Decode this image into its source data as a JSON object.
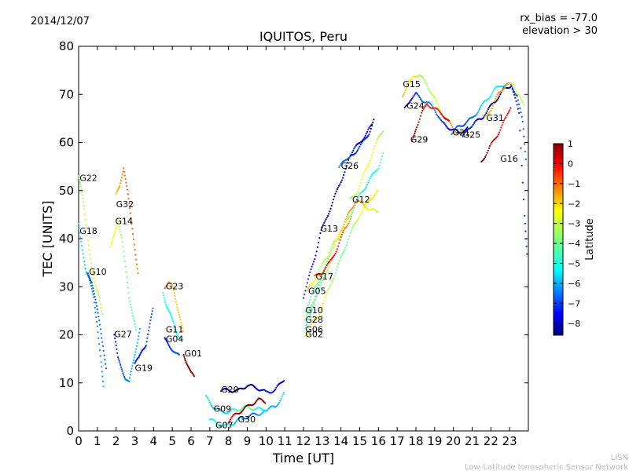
{
  "header": {
    "date": "2014/12/07",
    "bias": "rx_bias = -77.0",
    "elevation": "elevation > 30"
  },
  "watermark": {
    "line1": "LISN",
    "line2": "Low-Latitude Ionospheric Sensor Network"
  },
  "chart_data": {
    "type": "scatter",
    "title": "IQUITOS, Peru",
    "xlabel": "Time [UT]",
    "ylabel": "TEC [UNITS]",
    "xlim": [
      0,
      24
    ],
    "ylim": [
      0,
      80
    ],
    "xticks": [
      0,
      1,
      2,
      3,
      4,
      5,
      6,
      7,
      8,
      9,
      10,
      11,
      12,
      13,
      14,
      15,
      16,
      17,
      18,
      19,
      20,
      21,
      22,
      23
    ],
    "yticks": [
      0,
      10,
      20,
      30,
      40,
      50,
      60,
      70,
      80
    ],
    "colorbar": {
      "label": "Latitude",
      "range": [
        -8.6,
        1.0
      ],
      "ticks": [
        1,
        0,
        -1,
        -2,
        -3,
        -4,
        -5,
        -6,
        -7,
        -8
      ],
      "colormap": [
        "#00007f",
        "#0000ff",
        "#007fff",
        "#00ffff",
        "#7fff7f",
        "#ffff00",
        "#ff7f00",
        "#ff0000",
        "#7f0000"
      ]
    },
    "series": [
      {
        "name": "G22",
        "label_at": [
          0.05,
          52
        ],
        "lat": -3.8,
        "points": [
          [
            0.0,
            53
          ],
          [
            0.15,
            50
          ],
          [
            0.3,
            46
          ],
          [
            0.5,
            40
          ],
          [
            0.7,
            34
          ],
          [
            0.9,
            30
          ],
          [
            1.1,
            28
          ],
          [
            1.3,
            24
          ]
        ]
      },
      {
        "name": "G18",
        "label_at": [
          0.05,
          41
        ],
        "lat": -5.2,
        "points": [
          [
            0.0,
            43
          ],
          [
            0.2,
            38
          ],
          [
            0.4,
            33
          ],
          [
            0.6,
            31
          ],
          [
            0.8,
            28
          ],
          [
            1.0,
            22
          ],
          [
            1.2,
            14
          ],
          [
            1.35,
            8
          ]
        ]
      },
      {
        "name": "G10",
        "label_at": [
          0.55,
          32.5
        ],
        "lat": -7.2,
        "points": [
          [
            0.5,
            33
          ],
          [
            0.7,
            31
          ],
          [
            0.9,
            27
          ],
          [
            1.1,
            23
          ],
          [
            1.3,
            18
          ],
          [
            1.5,
            12
          ]
        ]
      },
      {
        "name": "G32",
        "label_at": [
          2.0,
          46.5
        ],
        "lat": -2.0,
        "points": [
          [
            2.0,
            49
          ],
          [
            2.2,
            51
          ],
          [
            2.4,
            55
          ],
          [
            2.6,
            50
          ],
          [
            2.8,
            44
          ],
          [
            3.0,
            38
          ],
          [
            3.2,
            32
          ]
        ]
      },
      {
        "name": "G14",
        "label_at": [
          1.95,
          43
        ],
        "lat": -3.4,
        "points": [
          [
            1.7,
            38
          ],
          [
            1.9,
            41
          ],
          [
            2.1,
            44
          ],
          [
            2.3,
            40
          ],
          [
            2.5,
            34
          ],
          [
            2.7,
            28
          ],
          [
            2.9,
            24
          ],
          [
            3.1,
            20
          ]
        ]
      },
      {
        "name": "G27",
        "label_at": [
          1.9,
          19.5
        ],
        "lat": -6.5,
        "points": [
          [
            1.9,
            20
          ],
          [
            2.1,
            15
          ],
          [
            2.3,
            13
          ],
          [
            2.5,
            11
          ],
          [
            2.7,
            10
          ],
          [
            2.9,
            14
          ],
          [
            3.1,
            18
          ],
          [
            3.3,
            22
          ]
        ]
      },
      {
        "name": "G19",
        "label_at": [
          3.0,
          12.5
        ],
        "lat": -6.2,
        "points": [
          [
            3.0,
            14
          ],
          [
            3.2,
            15
          ],
          [
            3.4,
            17
          ],
          [
            3.6,
            18
          ],
          [
            3.8,
            22
          ],
          [
            4.0,
            26
          ]
        ]
      },
      {
        "name": "G11",
        "label_at": [
          4.65,
          20.5
        ],
        "lat": -4.0,
        "points": [
          [
            4.5,
            29
          ],
          [
            4.7,
            26
          ],
          [
            4.9,
            24
          ],
          [
            5.1,
            22
          ],
          [
            5.3,
            20
          ],
          [
            5.5,
            19
          ]
        ]
      },
      {
        "name": "G04",
        "label_at": [
          4.65,
          18.5
        ],
        "lat": -7.5,
        "points": [
          [
            4.6,
            19
          ],
          [
            4.8,
            18
          ],
          [
            5.0,
            17
          ],
          [
            5.2,
            16
          ],
          [
            5.4,
            15.5
          ]
        ]
      },
      {
        "name": "G23",
        "label_at": [
          4.65,
          29.5
        ],
        "lat": -1.2,
        "points": [
          [
            4.6,
            30
          ],
          [
            4.8,
            31
          ],
          [
            5.0,
            30
          ],
          [
            5.2,
            27
          ],
          [
            5.4,
            24
          ],
          [
            5.6,
            20
          ]
        ]
      },
      {
        "name": "G01",
        "label_at": [
          5.65,
          15.5
        ],
        "lat": 0.2,
        "points": [
          [
            5.6,
            16
          ],
          [
            5.8,
            14
          ],
          [
            6.0,
            12
          ],
          [
            6.2,
            11
          ]
        ]
      },
      {
        "name": "G20",
        "label_at": [
          7.6,
          8.0
        ],
        "lat": -8.0,
        "points": [
          [
            7.6,
            8.5
          ],
          [
            8.0,
            8.5
          ],
          [
            8.5,
            8.3
          ],
          [
            9.0,
            9.5
          ],
          [
            9.5,
            9.0
          ],
          [
            10.0,
            8.0
          ],
          [
            10.5,
            8.5
          ],
          [
            11.0,
            11
          ]
        ]
      },
      {
        "name": "G09",
        "label_at": [
          7.2,
          4.0
        ],
        "lat": -4.8,
        "points": [
          [
            6.8,
            7
          ],
          [
            7.2,
            5
          ],
          [
            7.6,
            4
          ],
          [
            8.0,
            4
          ],
          [
            8.5,
            4.5
          ],
          [
            9.0,
            5
          ],
          [
            9.5,
            4.5
          ],
          [
            10.0,
            4.5
          ],
          [
            10.5,
            5
          ],
          [
            11.0,
            8
          ]
        ]
      },
      {
        "name": "G07",
        "label_at": [
          7.3,
          0.6
        ],
        "lat": -5.5,
        "points": [
          [
            7.0,
            2.5
          ],
          [
            7.4,
            1.5
          ],
          [
            7.8,
            1.0
          ],
          [
            8.2,
            1.5
          ],
          [
            8.6,
            2.5
          ],
          [
            9.0,
            3.0
          ],
          [
            9.5,
            3.5
          ],
          [
            10.0,
            4.0
          ]
        ]
      },
      {
        "name": "G30",
        "label_at": [
          8.5,
          1.8
        ],
        "lat": 0.5,
        "points": [
          [
            8.0,
            2
          ],
          [
            8.4,
            3.5
          ],
          [
            8.8,
            4.5
          ],
          [
            9.2,
            5.5
          ],
          [
            9.6,
            6.5
          ],
          [
            10.0,
            6
          ]
        ]
      },
      {
        "name": "G06",
        "label_at": [
          12.1,
          20.5
        ],
        "lat": -4.2,
        "points": [
          [
            12.1,
            21
          ],
          [
            12.4,
            25
          ],
          [
            12.8,
            30
          ],
          [
            13.2,
            35
          ],
          [
            13.6,
            39
          ],
          [
            14.0,
            41
          ],
          [
            14.5,
            45
          ],
          [
            15.0,
            49
          ],
          [
            15.5,
            52
          ],
          [
            16.0,
            55
          ],
          [
            16.3,
            58
          ]
        ]
      },
      {
        "name": "G02",
        "label_at": [
          12.1,
          19.5
        ],
        "lat": -3.2,
        "points": [
          [
            12.1,
            20
          ],
          [
            12.4,
            22
          ],
          [
            12.8,
            24
          ],
          [
            13.2,
            28
          ],
          [
            13.6,
            32
          ],
          [
            14.0,
            36
          ],
          [
            14.5,
            41
          ],
          [
            15.0,
            45
          ],
          [
            15.5,
            48
          ],
          [
            16.0,
            50
          ]
        ]
      },
      {
        "name": "G28",
        "label_at": [
          12.1,
          22.5
        ],
        "lat": -3.0,
        "points": [
          [
            12.1,
            23
          ],
          [
            12.4,
            26
          ],
          [
            12.8,
            29
          ],
          [
            13.2,
            33
          ],
          [
            13.6,
            36
          ]
        ]
      },
      {
        "name": "G10",
        "label_at": [
          12.1,
          24.5
        ],
        "lat": -4.5,
        "points": [
          [
            12.1,
            25
          ],
          [
            12.4,
            28
          ],
          [
            12.8,
            31
          ],
          [
            13.2,
            34
          ]
        ]
      },
      {
        "name": "G05",
        "label_at": [
          12.25,
          28.5
        ],
        "lat": -2.4,
        "points": [
          [
            12.2,
            29
          ],
          [
            12.5,
            31
          ],
          [
            12.8,
            33
          ],
          [
            13.2,
            36
          ],
          [
            13.6,
            38
          ],
          [
            14.0,
            42
          ],
          [
            14.4,
            45
          ],
          [
            14.8,
            48
          ],
          [
            15.2,
            47
          ],
          [
            15.6,
            46
          ],
          [
            16.0,
            45.5
          ]
        ]
      },
      {
        "name": "G17",
        "label_at": [
          12.65,
          31.5
        ],
        "lat": -1.0,
        "points": [
          [
            12.6,
            32
          ],
          [
            13.0,
            33
          ],
          [
            13.4,
            35
          ],
          [
            13.8,
            38
          ],
          [
            14.2,
            42
          ],
          [
            14.6,
            45
          ]
        ]
      },
      {
        "name": "G13",
        "label_at": [
          12.9,
          41.5
        ],
        "lat": -7.8,
        "points": [
          [
            12.0,
            28
          ],
          [
            12.3,
            32
          ],
          [
            12.6,
            36
          ],
          [
            12.9,
            41
          ],
          [
            13.3,
            45
          ],
          [
            13.7,
            49
          ],
          [
            14.1,
            53
          ],
          [
            14.5,
            57
          ],
          [
            15.0,
            59
          ],
          [
            15.5,
            62
          ],
          [
            15.8,
            65
          ]
        ]
      },
      {
        "name": "G26",
        "label_at": [
          14.0,
          54.5
        ],
        "lat": -6.8,
        "points": [
          [
            13.9,
            55
          ],
          [
            14.2,
            56
          ],
          [
            14.6,
            58
          ],
          [
            15.0,
            60
          ],
          [
            15.4,
            62
          ],
          [
            15.7,
            64
          ]
        ]
      },
      {
        "name": "G12",
        "label_at": [
          14.6,
          47.5
        ],
        "lat": -3.5,
        "points": [
          [
            14.5,
            48
          ],
          [
            14.9,
            50
          ],
          [
            15.3,
            54
          ],
          [
            15.7,
            58
          ],
          [
            16.0,
            61
          ],
          [
            16.3,
            63
          ]
        ]
      },
      {
        "name": "G15",
        "label_at": [
          17.3,
          71.5
        ],
        "lat": -2.6,
        "points": [
          [
            17.3,
            70
          ],
          [
            17.6,
            72
          ],
          [
            17.9,
            74
          ],
          [
            18.2,
            74
          ],
          [
            18.6,
            72
          ],
          [
            19.0,
            69
          ],
          [
            19.4,
            66
          ],
          [
            19.8,
            64
          ],
          [
            20.2,
            62
          ],
          [
            20.6,
            62
          ]
        ]
      },
      {
        "name": "G24",
        "label_at": [
          17.5,
          67
        ],
        "lat": -7.0,
        "points": [
          [
            17.4,
            67
          ],
          [
            17.7,
            69
          ],
          [
            18.0,
            70
          ],
          [
            18.3,
            69
          ],
          [
            18.7,
            68
          ],
          [
            19.0,
            67
          ],
          [
            19.4,
            64
          ],
          [
            19.8,
            63
          ],
          [
            20.3,
            62
          ],
          [
            20.8,
            63
          ]
        ]
      },
      {
        "name": "G29",
        "label_at": [
          17.7,
          60
        ],
        "lat": 0.3,
        "points": [
          [
            17.8,
            60
          ],
          [
            18.0,
            63
          ],
          [
            18.3,
            66
          ],
          [
            18.6,
            68
          ],
          [
            19.0,
            67
          ],
          [
            19.4,
            66
          ],
          [
            19.8,
            64
          ]
        ]
      },
      {
        "name": "G21",
        "label_at": [
          19.95,
          61.5
        ],
        "lat": -5.8,
        "points": [
          [
            19.9,
            62
          ],
          [
            20.2,
            63
          ],
          [
            20.6,
            64
          ],
          [
            21.0,
            65
          ],
          [
            21.4,
            67
          ],
          [
            21.8,
            69
          ],
          [
            22.2,
            71
          ],
          [
            22.6,
            72
          ],
          [
            23.0,
            72
          ],
          [
            23.4,
            70
          ],
          [
            23.7,
            64
          ],
          [
            23.9,
            55
          ]
        ]
      },
      {
        "name": "G25",
        "label_at": [
          20.5,
          61
        ],
        "lat": -7.8,
        "points": [
          [
            20.5,
            61
          ],
          [
            20.8,
            63
          ],
          [
            21.1,
            64
          ],
          [
            21.5,
            65
          ],
          [
            21.9,
            67
          ],
          [
            22.3,
            69
          ],
          [
            22.7,
            71
          ],
          [
            23.1,
            72
          ],
          [
            23.5,
            66
          ],
          [
            23.8,
            45
          ],
          [
            23.95,
            35
          ]
        ]
      },
      {
        "name": "G31",
        "label_at": [
          21.75,
          64.5
        ],
        "lat": -2.5,
        "points": [
          [
            21.7,
            65
          ],
          [
            22.0,
            67
          ],
          [
            22.4,
            70
          ],
          [
            22.8,
            72
          ],
          [
            23.2,
            72
          ],
          [
            23.5,
            70
          ],
          [
            23.8,
            67
          ]
        ]
      },
      {
        "name": "G16",
        "label_at": [
          22.5,
          56
        ],
        "lat": 0.6,
        "points": [
          [
            21.5,
            56
          ],
          [
            21.8,
            58
          ],
          [
            22.1,
            60
          ],
          [
            22.4,
            62
          ],
          [
            22.8,
            65
          ],
          [
            23.1,
            68
          ]
        ]
      }
    ]
  }
}
